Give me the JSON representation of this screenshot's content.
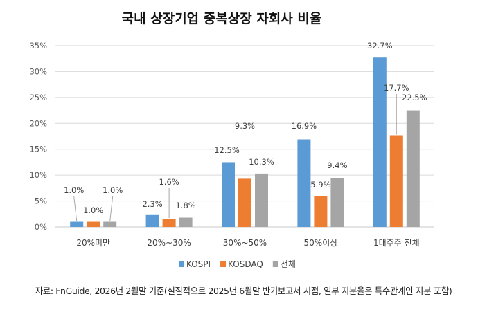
{
  "chart_data": {
    "type": "bar",
    "title": "국내 상장기업 중복상장 자회사 비율",
    "categories": [
      "20%미만",
      "20%~30%",
      "30%~50%",
      "50%이상",
      "1대주주 전체"
    ],
    "series": [
      {
        "name": "KOSPI",
        "color": "#5B9BD5",
        "values": [
          1.0,
          2.3,
          12.5,
          16.9,
          32.7
        ]
      },
      {
        "name": "KOSDAQ",
        "color": "#ED7D31",
        "values": [
          1.0,
          1.6,
          9.3,
          5.9,
          17.7
        ]
      },
      {
        "name": "전체",
        "color": "#A5A5A5",
        "values": [
          1.0,
          1.8,
          10.3,
          9.4,
          22.5
        ]
      }
    ],
    "ylim": [
      0,
      35
    ],
    "yticks": [
      "0%",
      "5%",
      "10%",
      "15%",
      "20%",
      "25%",
      "30%",
      "35%"
    ],
    "grid": true,
    "legend": "bottom",
    "value_format": "percent, 1 decimal"
  },
  "source": "자료: FnGuide, 2026년 2월말 기준(실질적으로 2025년 6월말 반기보고서 시점, 일부 지분율은 특수관계인 지분 포함)"
}
